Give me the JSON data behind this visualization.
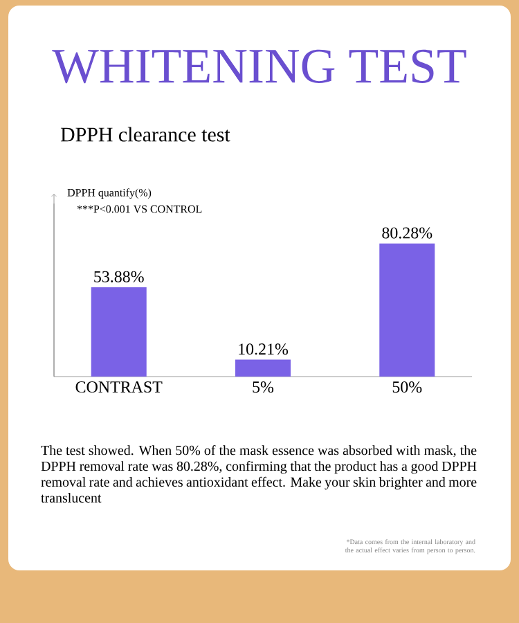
{
  "chart_data": {
    "type": "bar",
    "title": "WHITENING TEST",
    "subtitle": "DPPH clearance test",
    "ylabel": "DPPH quantify(%)",
    "categories": [
      "CONTRAST",
      "5%",
      "50%"
    ],
    "values": [
      53.88,
      10.21,
      80.28
    ],
    "value_labels": [
      "53.88%",
      "10.21%",
      "80.28%"
    ],
    "color": "#7a62e6",
    "annotations": [
      "***P<0.001 VS CONTROL",
      "The test showed. When 50% of the mask essence was absorbed with mask, the DPPH removal rate was 80.28%, confirming that the product has a good DPPH removal rate and achieves antioxidant effect. Make your skin brighter and more translucent",
      "*Data comes from the internal laboratory and the actual effect varies from person to person."
    ]
  }
}
